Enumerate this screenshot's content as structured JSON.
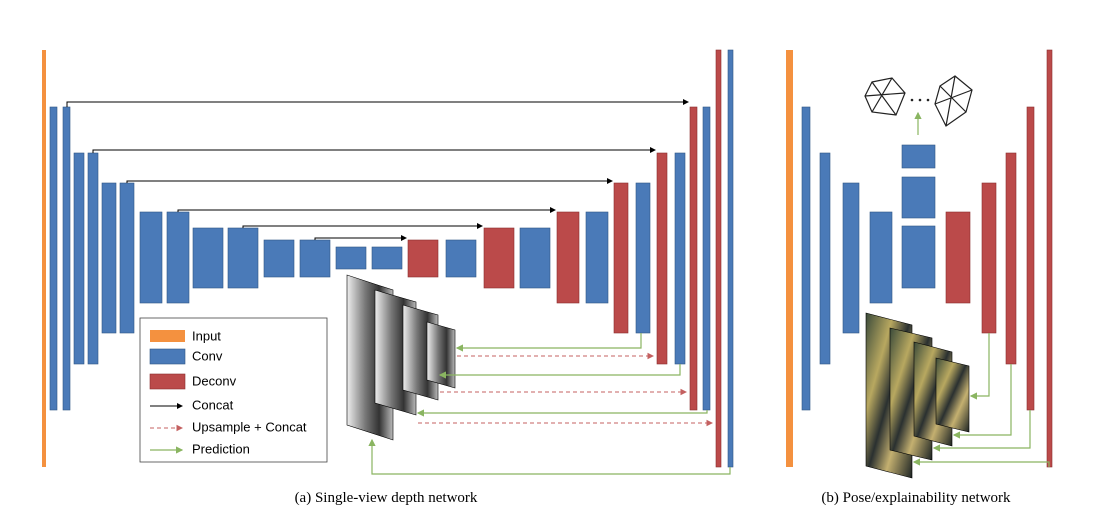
{
  "legend": {
    "items": [
      {
        "label": "Input"
      },
      {
        "label": "Conv"
      },
      {
        "label": "Deconv"
      },
      {
        "label": "Concat"
      },
      {
        "label": "Upsample + Concat"
      },
      {
        "label": "Prediction"
      }
    ]
  },
  "captions": {
    "a": "(a) Single-view depth network",
    "b": "(b) Pose/explainability network"
  }
}
